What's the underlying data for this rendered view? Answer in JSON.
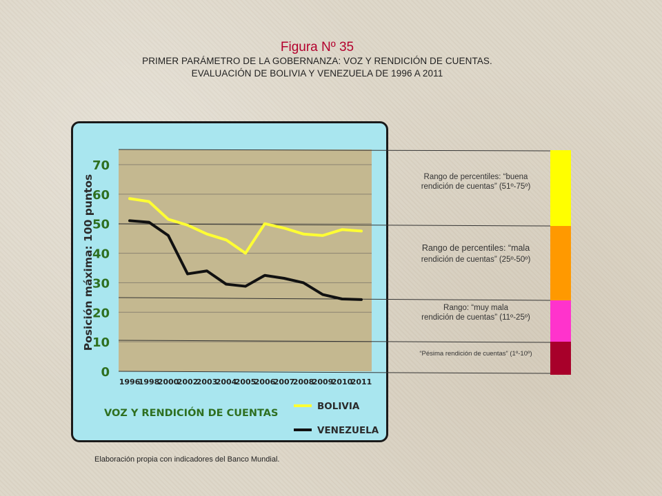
{
  "header": {
    "figure_title": "Figura Nº 35",
    "subtitle_line1": "PRIMER PARÁMETRO DE LA GOBERNANZA: VOZ Y RENDICIÓN DE CUENTAS.",
    "subtitle_line2": "EVALUACIÓN DE BOLIVIA Y VENEZUELA DE 1996 A 2011"
  },
  "chart_data": {
    "type": "line",
    "title": "VOZ Y RENDICIÓN DE CUENTAS",
    "ylabel": "Posición máxima: 100 puntos",
    "xlabel": "",
    "categories": [
      "1996",
      "1998",
      "2000",
      "2002",
      "2003",
      "2004",
      "2005",
      "2006",
      "2007",
      "2008",
      "2009",
      "2010",
      "2011"
    ],
    "y_ticks": [
      "0",
      "10",
      "20",
      "30",
      "40",
      "50",
      "60",
      "70"
    ],
    "ylim": [
      0,
      75
    ],
    "grid": true,
    "series": [
      {
        "name": "BOLIVIA",
        "color": "#ffff33",
        "values": [
          58.5,
          57.5,
          51.5,
          49.5,
          46.5,
          44.5,
          40,
          50,
          48.5,
          46.5,
          46,
          48,
          47.5
        ]
      },
      {
        "name": "VENEZUELA",
        "color": "#111111",
        "values": [
          51,
          50.5,
          46,
          33,
          34,
          29.5,
          28.8,
          32.5,
          31.5,
          30,
          26,
          24.5,
          24.3
        ]
      }
    ],
    "percentile_bands": [
      {
        "label_line1": "Rango de percentiles: “buena",
        "label_line2": "rendición de cuentas” (51º-75º)",
        "color": "#ffff00"
      },
      {
        "label_line1": "Rango de percentiles: “mala",
        "label_line2": "rendición de cuentas” (25º-50º)",
        "color": "#ff9900"
      },
      {
        "label_line1": "Rango: “muy mala",
        "label_line2": "rendición de cuentas” (11º-25º)",
        "color": "#ff33cc"
      },
      {
        "label_line1": "“Pésima rendición de cuentas” (1º-10º)",
        "label_line2": "",
        "color": "#a8002a"
      }
    ]
  },
  "colors": {
    "title_red": "#b3002d",
    "panel_cyan": "#a9e6ef",
    "plot_bg": "#c4b890",
    "tick_green": "#2e6f20"
  },
  "footer": {
    "source_note": "Elaboración propia con indicadores del Banco Mundial."
  }
}
